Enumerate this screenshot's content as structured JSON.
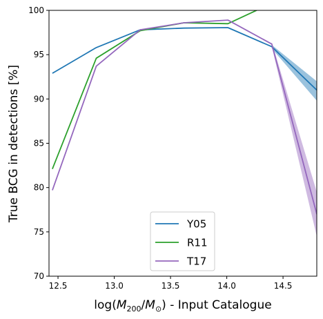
{
  "chart_data": {
    "type": "line",
    "xlabel": {
      "prefix": "log(",
      "M": "M",
      "sub200": "200",
      "slash": "/",
      "sub_sun": "⊙",
      "suffix": ") - Input Catalogue"
    },
    "ylabel": "True BCG in detections [%]",
    "xlim": [
      12.42,
      14.8
    ],
    "ylim": [
      70,
      100
    ],
    "xticks": [
      12.5,
      13.0,
      13.5,
      14.0,
      14.5
    ],
    "xtick_labels": [
      "12.5",
      "13.0",
      "13.5",
      "14.0",
      "14.5"
    ],
    "yticks": [
      70,
      75,
      80,
      85,
      90,
      95,
      100
    ],
    "ytick_labels": [
      "70",
      "75",
      "80",
      "85",
      "90",
      "95",
      "100"
    ],
    "grid": false,
    "legend_position": "bottom-center",
    "series": [
      {
        "name": "Y05",
        "color": "#1f77b4",
        "x": [
          12.45,
          12.84,
          13.23,
          13.62,
          14.01,
          14.4,
          14.8
        ],
        "y": [
          92.9,
          95.8,
          97.8,
          98.0,
          98.05,
          95.9,
          91.0
        ],
        "band_lower": [
          null,
          null,
          null,
          null,
          null,
          95.7,
          89.8
        ],
        "band_upper": [
          null,
          null,
          null,
          null,
          null,
          96.1,
          92.0
        ]
      },
      {
        "name": "R11",
        "color": "#2ca02c",
        "x": [
          12.45,
          12.84,
          13.23,
          13.62,
          14.01,
          14.4,
          14.8
        ],
        "y": [
          82.1,
          94.6,
          97.7,
          98.6,
          98.5,
          100.8,
          101.5
        ],
        "band_lower": [
          null,
          null,
          null,
          null,
          null,
          null,
          null
        ],
        "band_upper": [
          null,
          null,
          null,
          null,
          null,
          null,
          null
        ]
      },
      {
        "name": "T17",
        "color": "#9467bd",
        "x": [
          12.45,
          12.84,
          13.23,
          13.62,
          14.01,
          14.4,
          14.8
        ],
        "y": [
          79.7,
          93.7,
          97.8,
          98.6,
          98.9,
          96.2,
          77.0
        ],
        "band_lower": [
          null,
          null,
          null,
          null,
          null,
          95.9,
          74.5
        ],
        "band_upper": [
          null,
          null,
          null,
          null,
          null,
          96.4,
          79.5
        ]
      }
    ]
  }
}
